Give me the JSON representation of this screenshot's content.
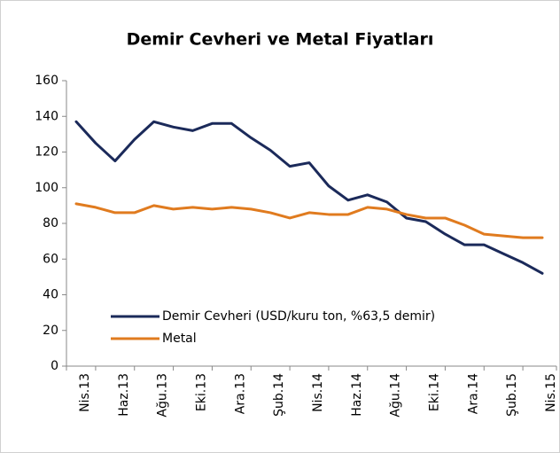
{
  "chart_data": {
    "type": "line",
    "title": "Demir Cevheri ve Metal Fiyatları",
    "categories": [
      "Nis.13",
      null,
      "Haz.13",
      null,
      "Ağu.13",
      null,
      "Eki.13",
      null,
      "Ara.13",
      null,
      "Şub.14",
      null,
      "Nis.14",
      null,
      "Haz.14",
      null,
      "Ağu.14",
      null,
      "Eki.14",
      null,
      "Ara.14",
      null,
      "Şub.15",
      null,
      "Nis.15"
    ],
    "series": [
      {
        "name": "Demir Cevheri (USD/kuru ton, %63,5 demir)",
        "color": "#1b2a5a",
        "values": [
          137,
          125,
          115,
          127,
          137,
          134,
          132,
          136,
          136,
          128,
          121,
          112,
          114,
          101,
          93,
          96,
          92,
          83,
          81,
          74,
          68,
          68,
          63,
          58,
          52
        ]
      },
      {
        "name": "Metal",
        "color": "#e07b1f",
        "values": [
          91,
          89,
          86,
          86,
          90,
          88,
          89,
          88,
          89,
          88,
          86,
          83,
          86,
          85,
          85,
          89,
          88,
          85,
          83,
          83,
          79,
          74,
          73,
          72,
          72
        ]
      }
    ],
    "ylim": [
      0,
      160
    ],
    "yticks": [
      0,
      20,
      40,
      60,
      80,
      100,
      120,
      140,
      160
    ]
  }
}
